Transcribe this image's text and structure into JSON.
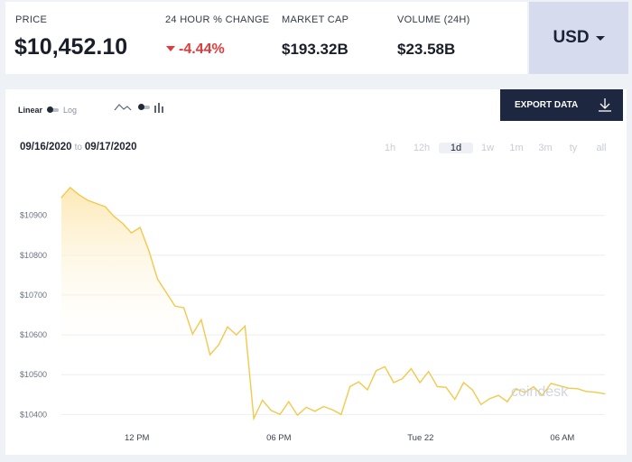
{
  "stats": {
    "price_label": "PRICE",
    "price_value": "$10,452.10",
    "change_label": "24 HOUR % CHANGE",
    "change_value": "-4.44%",
    "market_cap_label": "MARKET CAP",
    "market_cap_value": "$193.32B",
    "volume_label": "VOLUME (24H)",
    "volume_value": "$23.58B"
  },
  "currency": {
    "selected": "USD"
  },
  "controls": {
    "scale_linear": "Linear",
    "scale_log": "Log",
    "export_label": "EXPORT DATA"
  },
  "date_range": {
    "start": "09/16/2020",
    "separator": "to",
    "end": "09/17/2020"
  },
  "time_ranges": [
    {
      "label": "1h",
      "active": false
    },
    {
      "label": "12h",
      "active": false
    },
    {
      "label": "1d",
      "active": true
    },
    {
      "label": "1w",
      "active": false
    },
    {
      "label": "1m",
      "active": false
    },
    {
      "label": "3m",
      "active": false
    },
    {
      "label": "ty",
      "active": false
    },
    {
      "label": "all",
      "active": false
    }
  ],
  "watermark": "coindesk",
  "colors": {
    "line": "#f2c94c",
    "fill_top": "#fde9b6",
    "negative": "#e23b3b",
    "button_dark": "#1e2740",
    "currency_bg": "#d6dbee"
  },
  "chart_data": {
    "type": "area",
    "yticks": [
      10400,
      10500,
      10600,
      10700,
      10800,
      10900
    ],
    "ytick_labels": [
      "$10400",
      "$10500",
      "$10600",
      "$10700",
      "$10800",
      "$10900"
    ],
    "xtick_labels": [
      "12 PM",
      "06 PM",
      "Tue 22",
      "06 AM"
    ],
    "xtick_positions_hours": [
      3.2,
      9.2,
      15.2,
      21.2
    ],
    "ylim": [
      10360,
      10990
    ],
    "x_hours": [
      0,
      0.37,
      0.74,
      1.11,
      1.48,
      1.85,
      2.22,
      2.59,
      2.96,
      3.33,
      3.7,
      4.07,
      4.44,
      4.81,
      5.18,
      5.55,
      5.92,
      6.29,
      6.66,
      7.03,
      7.4,
      7.77,
      8.14,
      8.51,
      8.88,
      9.25,
      9.62,
      9.99,
      10.36,
      10.73,
      11.1,
      11.47,
      11.84,
      12.21,
      12.58,
      12.95,
      13.32,
      13.69,
      14.06,
      14.43,
      14.8,
      15.17,
      15.54,
      15.91,
      16.28,
      16.65,
      17.02,
      17.39,
      17.76,
      18.13,
      18.5,
      18.87,
      19.24,
      19.61,
      19.98,
      20.35,
      20.72,
      21.09,
      21.46,
      21.83,
      22.2,
      22.57,
      23.0
    ],
    "y": [
      10945,
      10970,
      10952,
      10938,
      10930,
      10922,
      10898,
      10880,
      10856,
      10870,
      10812,
      10740,
      10706,
      10672,
      10668,
      10602,
      10638,
      10550,
      10575,
      10620,
      10600,
      10622,
      10390,
      10436,
      10410,
      10400,
      10432,
      10398,
      10418,
      10408,
      10420,
      10412,
      10400,
      10470,
      10482,
      10462,
      10510,
      10520,
      10480,
      10490,
      10515,
      10480,
      10508,
      10470,
      10468,
      10438,
      10480,
      10462,
      10425,
      10440,
      10448,
      10432,
      10465,
      10455,
      10470,
      10448,
      10478,
      10472,
      10466,
      10465,
      10458,
      10456,
      10452
    ]
  }
}
